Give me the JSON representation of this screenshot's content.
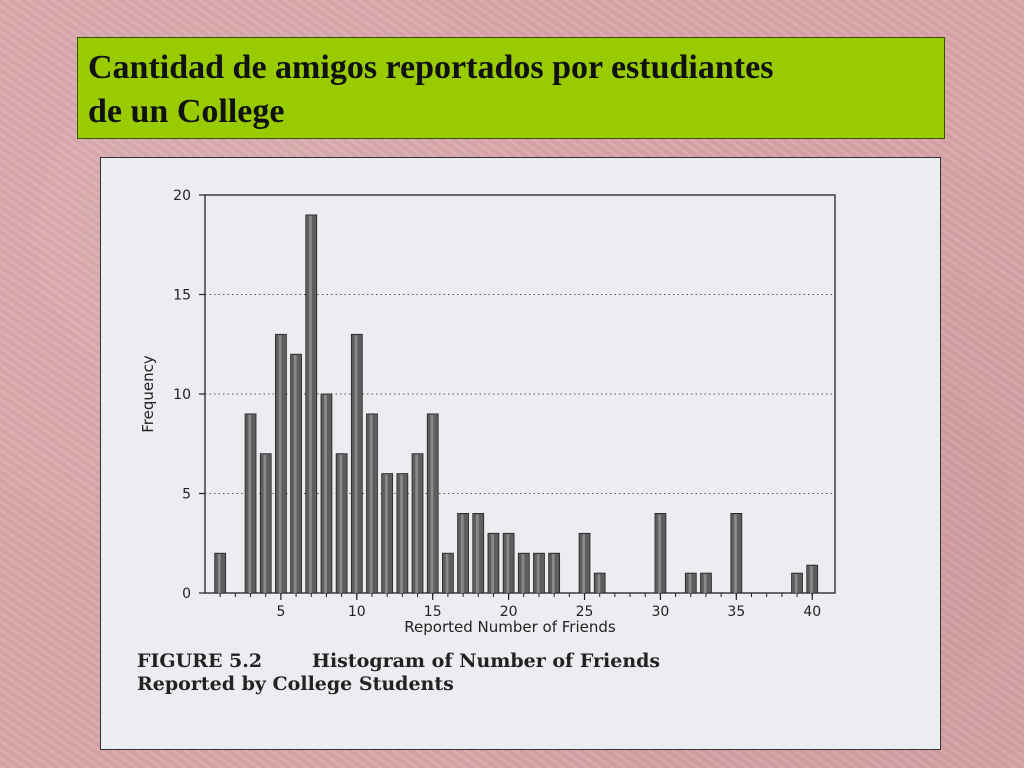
{
  "slide": {
    "title_line1": "Cantidad de amigos reportados por estudiantes",
    "title_line2": "de un College"
  },
  "figure": {
    "caption_number": "FIGURE 5.2",
    "caption_line1": "Histogram of Number of Friends",
    "caption_line2": "Reported by College Students"
  },
  "chart_data": {
    "type": "bar",
    "xlabel": "Reported Number of Friends",
    "ylabel": "Frequency",
    "x": [
      1,
      2,
      3,
      4,
      5,
      6,
      7,
      8,
      9,
      10,
      11,
      12,
      13,
      14,
      15,
      16,
      17,
      18,
      19,
      20,
      21,
      22,
      23,
      24,
      25,
      26,
      27,
      28,
      29,
      30,
      31,
      32,
      33,
      34,
      35,
      36,
      37,
      38,
      39,
      40
    ],
    "values": [
      2,
      0,
      9,
      7,
      13,
      12,
      19,
      10,
      7,
      13,
      9,
      6,
      6,
      7,
      9,
      2,
      4,
      4,
      3,
      3,
      2,
      2,
      2,
      0,
      3,
      1,
      0,
      0,
      0,
      4,
      0,
      1,
      1,
      0,
      4,
      0,
      0,
      0,
      1,
      1.4
    ],
    "xticks": [
      5,
      10,
      15,
      20,
      25,
      30,
      35,
      40
    ],
    "yticks": [
      0,
      5,
      10,
      15,
      20
    ],
    "xlim": [
      0,
      41.5
    ],
    "ylim": [
      0,
      20
    ],
    "grid": "horizontal-dotted"
  }
}
